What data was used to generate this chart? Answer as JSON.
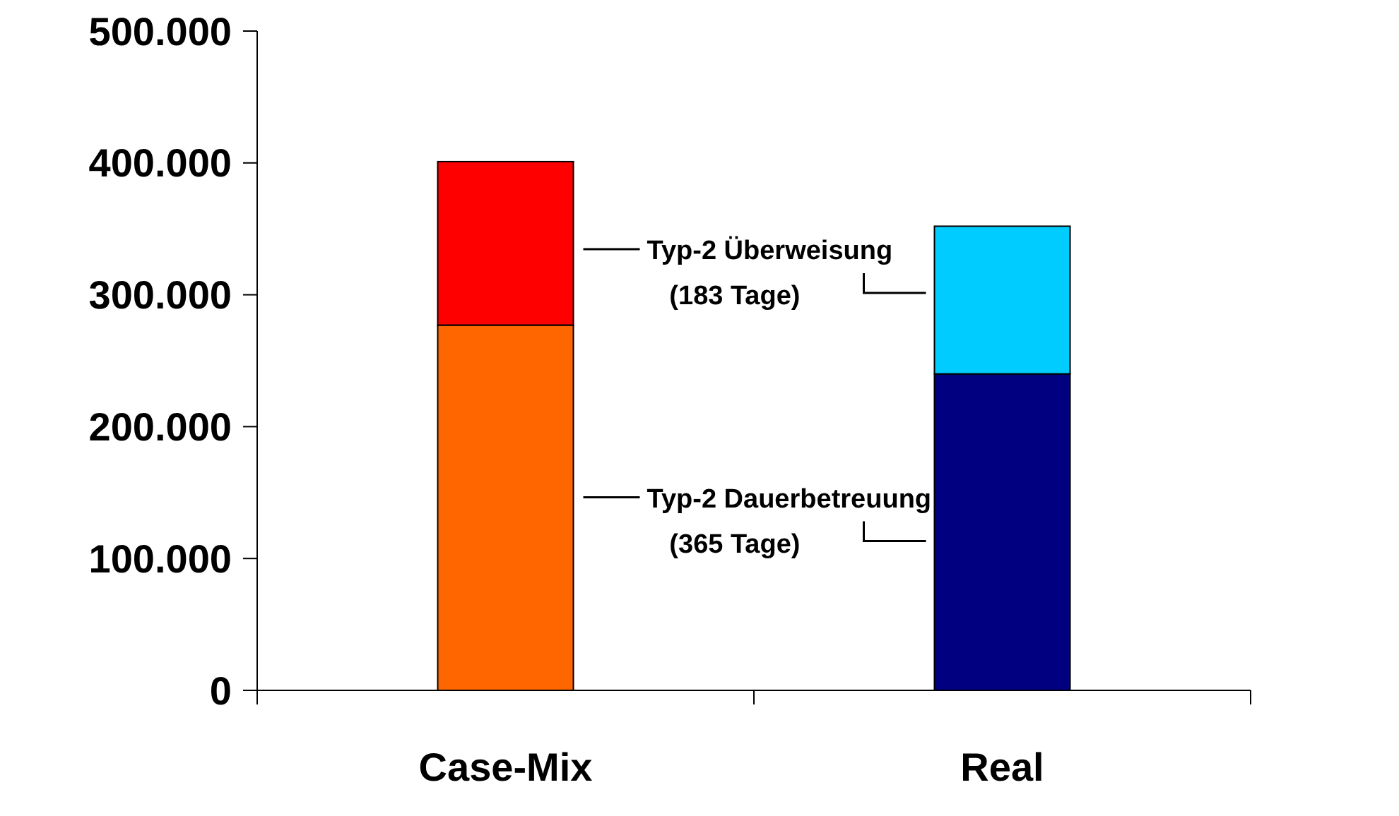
{
  "chart_data": {
    "type": "bar",
    "stacked": true,
    "categories": [
      "Case-Mix",
      "Real"
    ],
    "series": [
      {
        "name": "Typ-2 Dauerbetreuung (365 Tage)",
        "colors": [
          "#ff6600",
          "#000080"
        ],
        "values": [
          277000,
          240000
        ]
      },
      {
        "name": "Typ-2 Überweisung (183 Tage)",
        "colors": [
          "#ff0000",
          "#00ccff"
        ],
        "values": [
          124000,
          112000
        ]
      }
    ],
    "ylim": [
      0,
      500000
    ],
    "yticks": [
      {
        "value": 0,
        "label": "0"
      },
      {
        "value": 100000,
        "label": "100.000"
      },
      {
        "value": 200000,
        "label": "200.000"
      },
      {
        "value": 300000,
        "label": "300.000"
      },
      {
        "value": 400000,
        "label": "400.000"
      },
      {
        "value": 500000,
        "label": "500.000"
      }
    ],
    "legend": "center",
    "grid": false
  }
}
